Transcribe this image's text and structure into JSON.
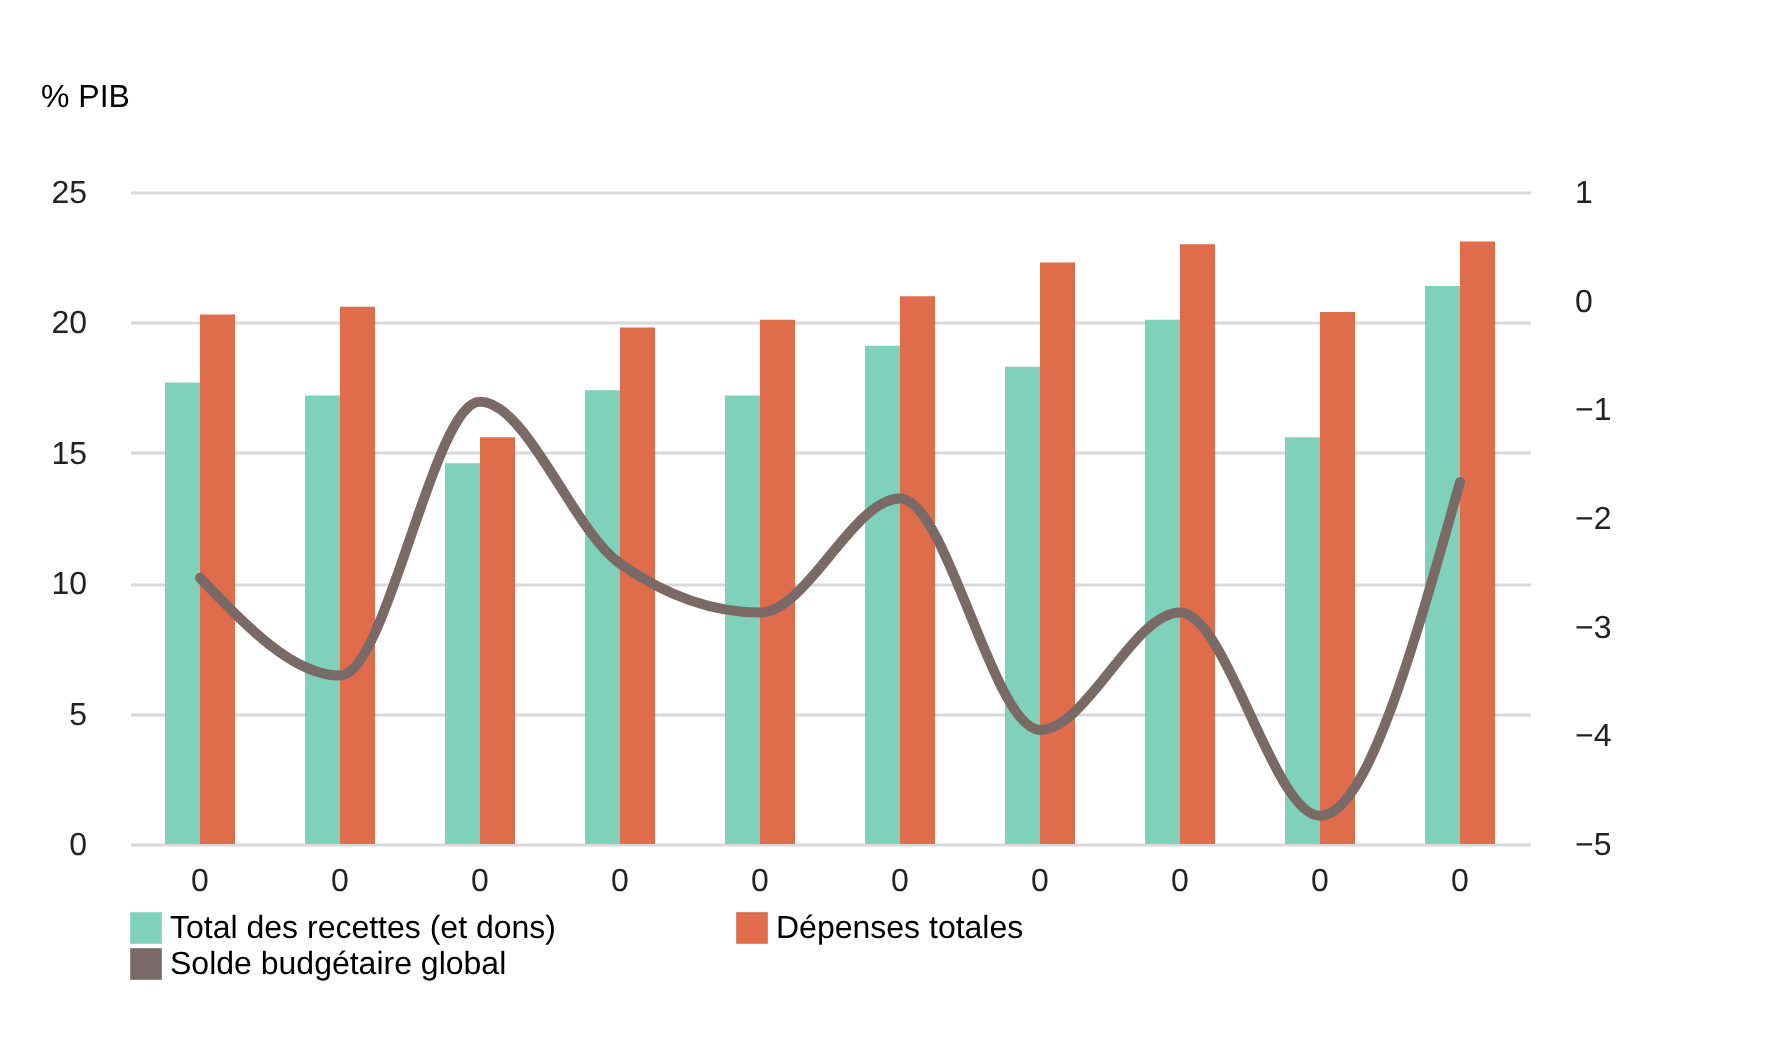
{
  "chart_data": {
    "type": "bar",
    "ylabel": "% PIB",
    "categories": [
      "0",
      "0",
      "0",
      "0",
      "0",
      "0",
      "0",
      "0",
      "0",
      "0"
    ],
    "series": [
      {
        "name": "Total des recettes (et dons)",
        "color": "#7fd1b9",
        "values": [
          17.7,
          17.2,
          14.6,
          17.4,
          17.2,
          19.1,
          18.3,
          20.1,
          15.6,
          21.4
        ]
      },
      {
        "name": "Dépenses totales",
        "color": "#df6c4b",
        "values": [
          20.3,
          20.6,
          15.6,
          19.8,
          20.1,
          21.0,
          22.3,
          23.0,
          20.4,
          23.1
        ]
      },
      {
        "name": "Solde budgétaire global",
        "color": "#7a6a67",
        "type": "line",
        "axis": "y2",
        "values": [
          -2.55,
          -3.45,
          -0.93,
          -2.42,
          -2.87,
          -1.82,
          -3.95,
          -2.87,
          -4.74,
          -1.67
        ]
      }
    ],
    "ylim": [
      0,
      25
    ],
    "yticks": [
      0,
      5,
      10,
      15,
      20,
      25
    ],
    "y2lim": [
      -5,
      1
    ],
    "y2ticks": [
      -5,
      -4,
      -3,
      -2,
      -1,
      0,
      1
    ],
    "grid": "y",
    "legend": "bottom",
    "marker": "none",
    "line_style": "solid"
  }
}
